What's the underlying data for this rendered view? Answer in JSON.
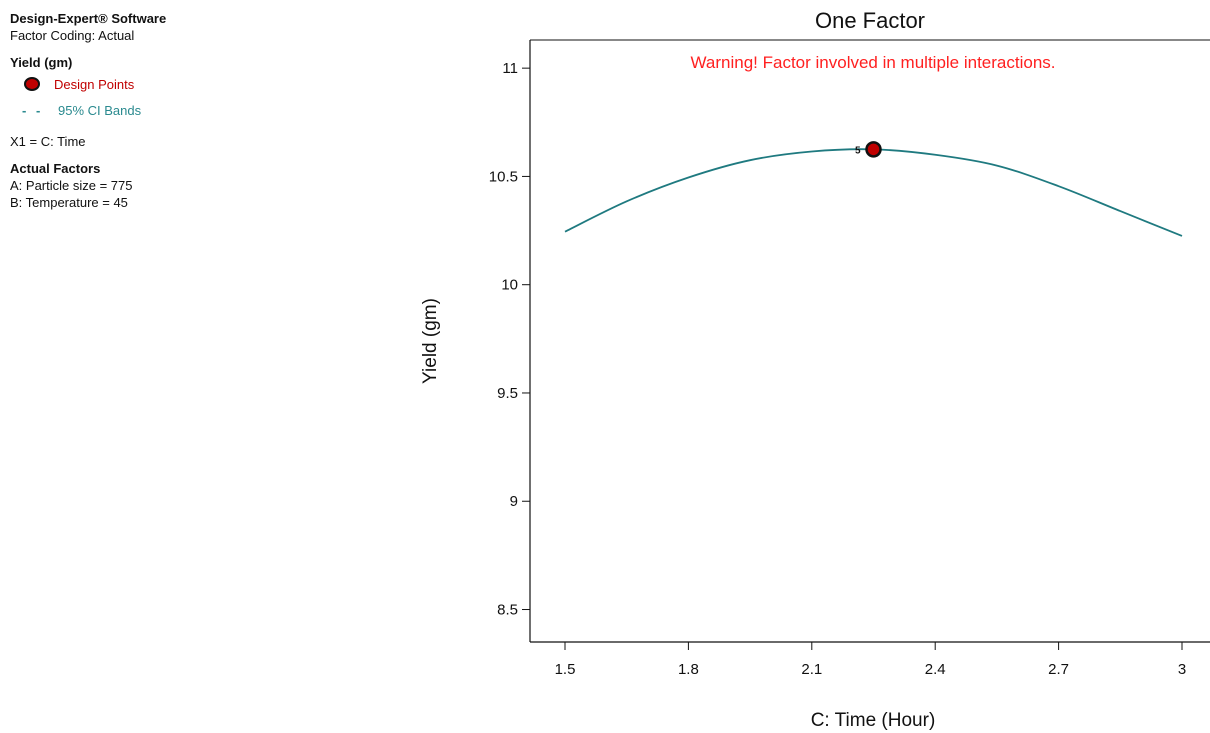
{
  "sidebar": {
    "software": "Design-Expert® Software",
    "coding": "Factor Coding: Actual",
    "response": "Yield (gm)",
    "legend_design_points": "Design Points",
    "legend_ci": "95% CI Bands",
    "x1": "X1 = C: Time",
    "actual_factors_title": "Actual Factors",
    "factor_a": "A: Particle size = 775",
    "factor_b": "B: Temperature = 45"
  },
  "colors": {
    "design_point": "#c00000",
    "ci_bands": "#2a8a8f",
    "design_points_label": "#c00000",
    "curve": "#1f7a80",
    "warning": "#ff2020"
  },
  "chart_data": {
    "type": "line",
    "title": "One Factor",
    "warning": "Warning! Factor involved in multiple interactions.",
    "xlabel": "C: Time (Hour)",
    "ylabel": "Yield (gm)",
    "xlim": [
      1.5,
      3.0
    ],
    "ylim": [
      8.35,
      11.13
    ],
    "x_ticks": [
      "1.5",
      "1.8",
      "2.1",
      "2.4",
      "2.7",
      "3"
    ],
    "y_ticks": [
      "8.5",
      "9",
      "9.5",
      "10",
      "10.5",
      "11"
    ],
    "series": [
      {
        "x": [
          1.5,
          1.65,
          1.8,
          1.95,
          2.1,
          2.25,
          2.4,
          2.55,
          2.7,
          2.85,
          3.0
        ],
        "values": [
          10.245,
          10.385,
          10.495,
          10.575,
          10.615,
          10.625,
          10.6,
          10.55,
          10.455,
          10.34,
          10.225
        ]
      }
    ],
    "design_points": [
      {
        "x": 2.25,
        "y": 10.625,
        "label": "5"
      }
    ]
  }
}
